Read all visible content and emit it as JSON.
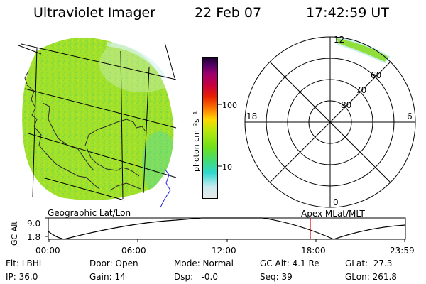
{
  "header": {
    "title": "Ultraviolet Imager",
    "date": "22 Feb 07",
    "time": "17:42:59 UT"
  },
  "geo_panel": {
    "label": "Geographic Lat/Lon"
  },
  "colorbar": {
    "unit_label": "photon cm⁻²s⁻¹",
    "ticks": [
      "100",
      "10"
    ],
    "scale": "log",
    "colors": [
      "#e8e8e8",
      "#c8ecf0",
      "#30d8d0",
      "#40dc7a",
      "#6ee01c",
      "#b8e80c",
      "#ffd800",
      "#ff8c00",
      "#e82000",
      "#c8003c",
      "#a0006e",
      "#5a0068",
      "#1a0030"
    ]
  },
  "polar_panel": {
    "label": "Apex MLat/MLT",
    "mlt_labels": {
      "top": "12",
      "right": "6",
      "bottom": "0",
      "left": "18"
    },
    "mlat_labels": [
      "80",
      "70",
      "60"
    ]
  },
  "altitude_plot": {
    "axis_label": "GC Alt",
    "y_ticks": [
      "9.0",
      "1.8"
    ],
    "x_ticks": [
      "00:00",
      "06:00",
      "12:00",
      "18:00",
      "23:59"
    ],
    "current_time_color": "#e00000"
  },
  "footer": {
    "row1": [
      "Flt: LBHL",
      "Door: Open",
      "Mode: Normal",
      "GC Alt: 4.1 Re",
      "GLat:  27.3"
    ],
    "row2": [
      "IP: 36.0",
      "Gain: 14",
      "Dsp:   -0.0",
      "Seq: 39",
      "GLon: 261.8"
    ]
  }
}
